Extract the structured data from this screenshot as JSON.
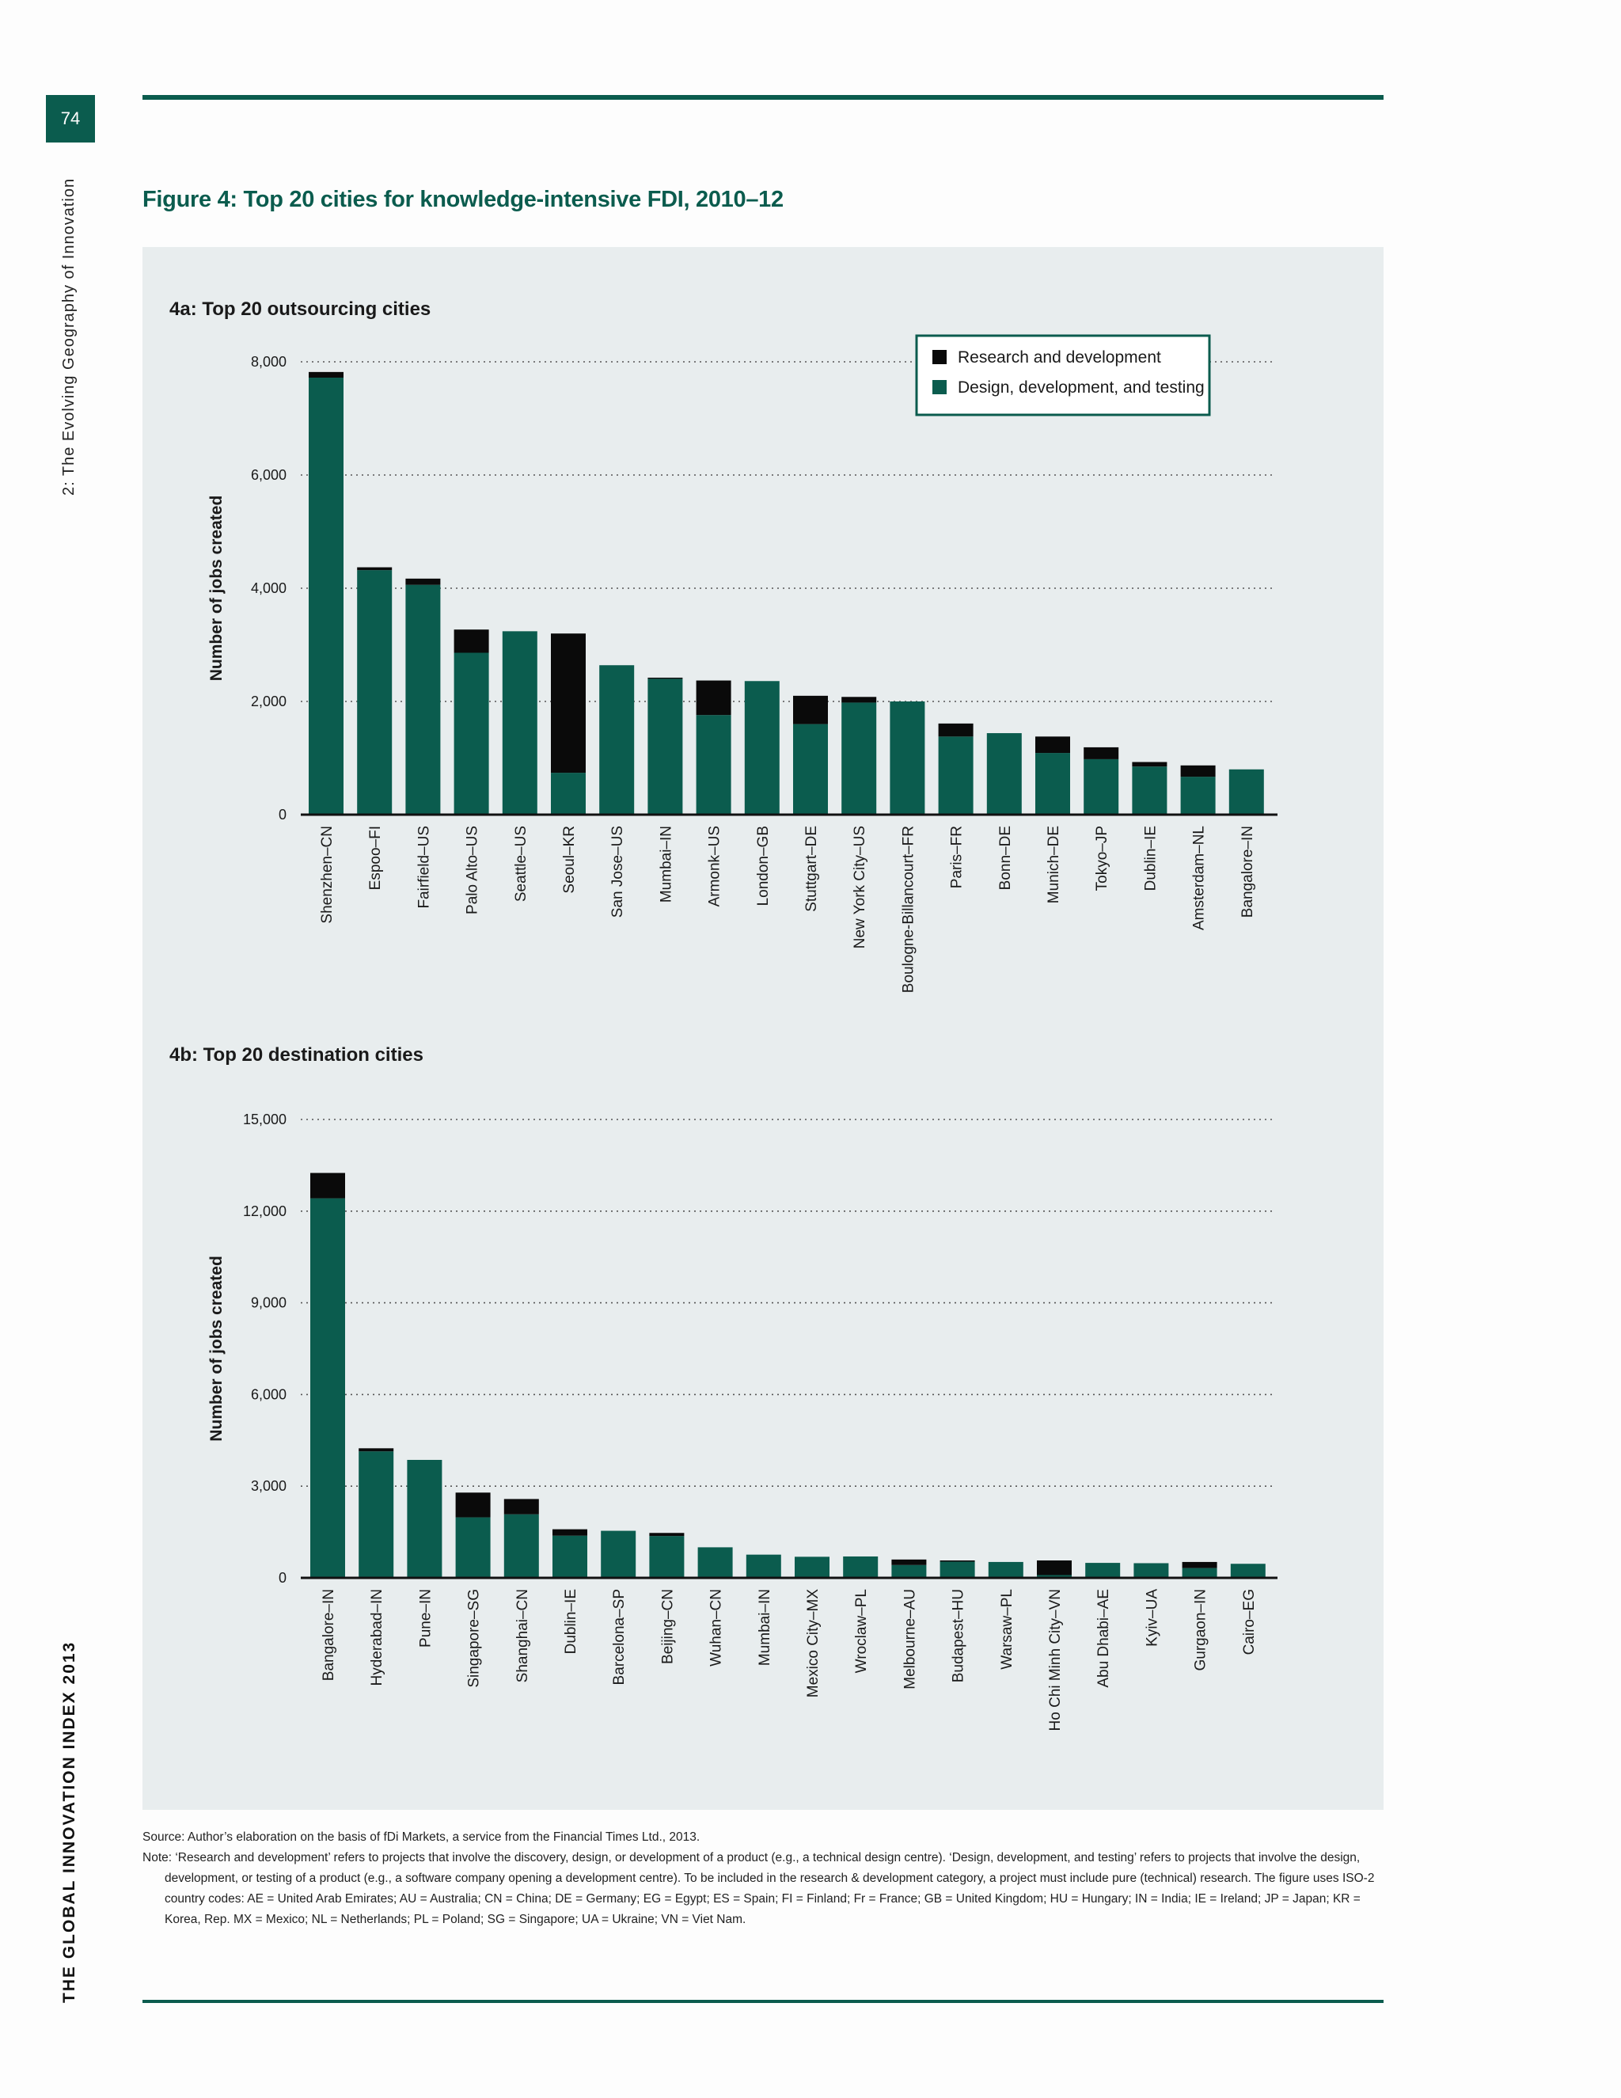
{
  "page": {
    "number": "74",
    "chapter": "2: The Evolving Geography of Innovation",
    "report": "THE GLOBAL INNOVATION INDEX 2013"
  },
  "figure": {
    "title": "Figure 4: Top 20 cities for knowledge-intensive FDI, 2010–12",
    "source": "Source: Author’s elaboration on the basis of fDi Markets, a service from the Financial Times Ltd., 2013.",
    "note": "Note: ‘Research and development’ refers to projects that involve the discovery, design, or development of a product (e.g., a technical design centre). ‘Design, development, and testing’ refers to projects that involve the design, development, or testing of a product (e.g., a software company opening a development centre). To be included in the research & development category, a project must include pure (technical) research. The figure uses ISO-2 country codes: AE = United Arab Emirates; AU = Australia; CN = China; DE = Germany; EG = Egypt; ES = Spain; FI = Finland; Fr = France; GB = United Kingdom; HU = Hungary; IN = India; IE = Ireland; JP = Japan; KR = Korea, Rep. MX = Mexico; NL = Netherlands; PL = Poland; SG = Singapore; UA = Ukraine; VN = Viet Nam."
  },
  "colors": {
    "rd": "#0a0a0a",
    "ddt": "#0b5c4e",
    "accent": "#0b5c4e",
    "panel": "#e8edee"
  },
  "chart_data": [
    {
      "type": "bar",
      "stacked": true,
      "title": "4a: Top 20 outsourcing cities",
      "ylabel": "Number of jobs created",
      "ylim": [
        0,
        8000
      ],
      "yticks": [
        0,
        2000,
        4000,
        6000,
        8000
      ],
      "ytick_labels": [
        "0",
        "2,000",
        "4,000",
        "6,000",
        "8,000"
      ],
      "grid": "horizontal dotted",
      "legend_position": "top-right",
      "categories": [
        "Shenzhen–CN",
        "Espoo–FI",
        "Fairfield–US",
        "Palo Alto–US",
        "Seattle–US",
        "Seoul–KR",
        "San Jose–US",
        "Mumbai–IN",
        "Armonk–US",
        "London–GB",
        "Stuttgart–DE",
        "New York City–US",
        "Boulogne-Billancourt–FR",
        "Paris–FR",
        "Bonn–DE",
        "Munich–DE",
        "Tokyo–JP",
        "Dublin–IE",
        "Amsterdam–NL",
        "Bangalore–IN"
      ],
      "series": [
        {
          "name": "Design, development, and testing",
          "values": [
            7720,
            4320,
            4060,
            2860,
            3240,
            740,
            2640,
            2400,
            1760,
            2360,
            1600,
            1980,
            2000,
            1380,
            1440,
            1090,
            980,
            850,
            670,
            800
          ]
        },
        {
          "name": "Research and development",
          "values": [
            100,
            50,
            110,
            410,
            0,
            2460,
            0,
            20,
            610,
            0,
            500,
            100,
            0,
            230,
            0,
            290,
            210,
            80,
            200,
            0
          ]
        }
      ]
    },
    {
      "type": "bar",
      "stacked": true,
      "title": "4b: Top 20 destination cities",
      "ylabel": "Number of jobs created",
      "ylim": [
        0,
        15000
      ],
      "yticks": [
        0,
        3000,
        6000,
        9000,
        12000,
        15000
      ],
      "ytick_labels": [
        "0",
        "3,000",
        "6,000",
        "9,000",
        "12,000",
        "15,000"
      ],
      "grid": "horizontal dotted",
      "categories": [
        "Bangalore–IN",
        "Hyderabad–IN",
        "Pune–IN",
        "Singapore–SG",
        "Shanghai–CN",
        "Dublin–IE",
        "Barcelona–SP",
        "Beijing–CN",
        "Wuhan–CN",
        "Mumbai–IN",
        "Mexico City–MX",
        "Wroclaw–PL",
        "Melbourne–AU",
        "Budapest–HU",
        "Warsaw–PL",
        "Ho Chi Minh City–VN",
        "Abu Dhabi–AE",
        "Kyiv–UA",
        "Gurgaon–IN",
        "Cairo–EG"
      ],
      "series": [
        {
          "name": "Design, development, and testing",
          "values": [
            12420,
            4140,
            3860,
            1980,
            2080,
            1380,
            1540,
            1370,
            1000,
            760,
            690,
            700,
            420,
            530,
            520,
            90,
            490,
            480,
            320,
            460
          ]
        },
        {
          "name": "Research and development",
          "values": [
            830,
            100,
            0,
            810,
            500,
            210,
            0,
            100,
            0,
            0,
            0,
            0,
            180,
            40,
            0,
            480,
            0,
            0,
            200,
            0
          ]
        }
      ]
    }
  ]
}
